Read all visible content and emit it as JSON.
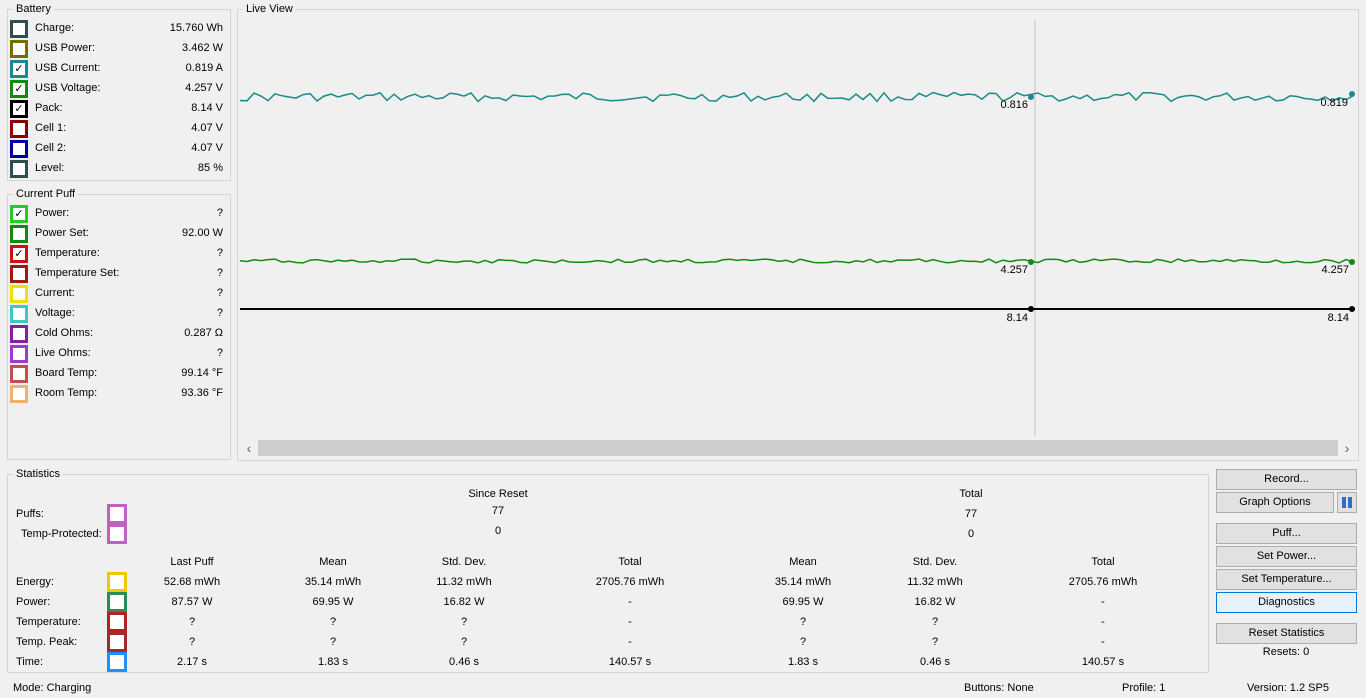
{
  "colors": {
    "teal_line": "#1b8a8a",
    "green_line": "#118a11",
    "black_line": "#000000",
    "cursor_line": "#d9d9d9"
  },
  "battery": {
    "title": "Battery",
    "items": [
      {
        "label": "Charge:",
        "value": "15.760 Wh",
        "color": "#2f4f4f",
        "checked": false
      },
      {
        "label": "USB Power:",
        "value": "3.462 W",
        "color": "#7a6a00",
        "checked": false
      },
      {
        "label": "USB Current:",
        "value": "0.819 A",
        "color": "#1b8a8a",
        "checked": true
      },
      {
        "label": "USB Voltage:",
        "value": "4.257 V",
        "color": "#118a11",
        "checked": true
      },
      {
        "label": "Pack:",
        "value": "8.14 V",
        "color": "#000000",
        "checked": true
      },
      {
        "label": "Cell 1:",
        "value": "4.07 V",
        "color": "#8b0000",
        "checked": false
      },
      {
        "label": "Cell 2:",
        "value": "4.07 V",
        "color": "#0000a8",
        "checked": false
      },
      {
        "label": "Level:",
        "value": "85 %",
        "color": "#2f4f4f",
        "checked": false
      }
    ]
  },
  "current_puff": {
    "title": "Current Puff",
    "items": [
      {
        "label": "Power:",
        "value": "?",
        "color": "#22cc22",
        "checked": true
      },
      {
        "label": "Power Set:",
        "value": "92.00 W",
        "color": "#118a11",
        "checked": false
      },
      {
        "label": "Temperature:",
        "value": "?",
        "color": "#cc1111",
        "checked": true
      },
      {
        "label": "Temperature Set:",
        "value": "?",
        "color": "#a01818",
        "checked": false
      },
      {
        "label": "Current:",
        "value": "?",
        "color": "#f0e000",
        "checked": false
      },
      {
        "label": "Voltage:",
        "value": "?",
        "color": "#40c8c0",
        "checked": false
      },
      {
        "label": "Cold Ohms:",
        "value": "0.287 Ω",
        "color": "#8a1aa8",
        "checked": false
      },
      {
        "label": "Live Ohms:",
        "value": "?",
        "color": "#9a3ad0",
        "checked": false
      },
      {
        "label": "Board Temp:",
        "value": "99.14 °F",
        "color": "#c05050",
        "checked": false
      },
      {
        "label": "Room Temp:",
        "value": "93.36 °F",
        "color": "#f0b070",
        "checked": false
      }
    ]
  },
  "live_view": {
    "title": "Live View",
    "series_labels": {
      "teal_left": "0.816",
      "teal_right": "0.819",
      "green_left": "4.257",
      "green_right": "4.257",
      "black_left": "8.14",
      "black_right": "8.14"
    },
    "scroll_left": "‹",
    "scroll_right": "›"
  },
  "statistics": {
    "title": "Statistics",
    "since_reset_header": "Since Reset",
    "total_header": "Total",
    "puffs_label": "Puffs:",
    "temp_protected_label": "Temp-Protected:",
    "puffs_since": "77",
    "puffs_total": "77",
    "tp_since": "0",
    "tp_total": "0",
    "columns": [
      "Last Puff",
      "Mean",
      "Std. Dev.",
      "Total",
      "Mean",
      "Std. Dev.",
      "Total"
    ],
    "rows": [
      {
        "label": "Energy:",
        "color": "#f0c800",
        "cells": [
          "52.68 mWh",
          "35.14 mWh",
          "11.32 mWh",
          "2705.76 mWh",
          "35.14 mWh",
          "11.32 mWh",
          "2705.76 mWh"
        ]
      },
      {
        "label": "Power:",
        "color": "#2e8b57",
        "cells": [
          "87.57 W",
          "69.95 W",
          "16.82 W",
          "-",
          "69.95 W",
          "16.82 W",
          "-"
        ]
      },
      {
        "label": "Temperature:",
        "color": "#b22222",
        "cells": [
          "?",
          "?",
          "?",
          "-",
          "?",
          "?",
          "-"
        ]
      },
      {
        "label": "Temp. Peak:",
        "color": "#a52a2a",
        "cells": [
          "?",
          "?",
          "?",
          "-",
          "?",
          "?",
          "-"
        ]
      },
      {
        "label": "Time:",
        "color": "#1e90ff",
        "cells": [
          "2.17 s",
          "1.83 s",
          "0.46 s",
          "140.57 s",
          "1.83 s",
          "0.46 s",
          "140.57 s"
        ]
      }
    ],
    "puffs_color": "#c060c0",
    "tp_color": "#c060c0"
  },
  "buttons": {
    "record": "Record...",
    "graph_options": "Graph Options",
    "puff": "Puff...",
    "set_power": "Set Power...",
    "set_temperature": "Set Temperature...",
    "diagnostics": "Diagnostics",
    "reset_statistics": "Reset Statistics",
    "resets": "Resets: 0"
  },
  "status": {
    "mode": "Mode: Charging",
    "buttons": "Buttons: None",
    "profile": "Profile: 1",
    "version": "Version: 1.2 SP5"
  }
}
